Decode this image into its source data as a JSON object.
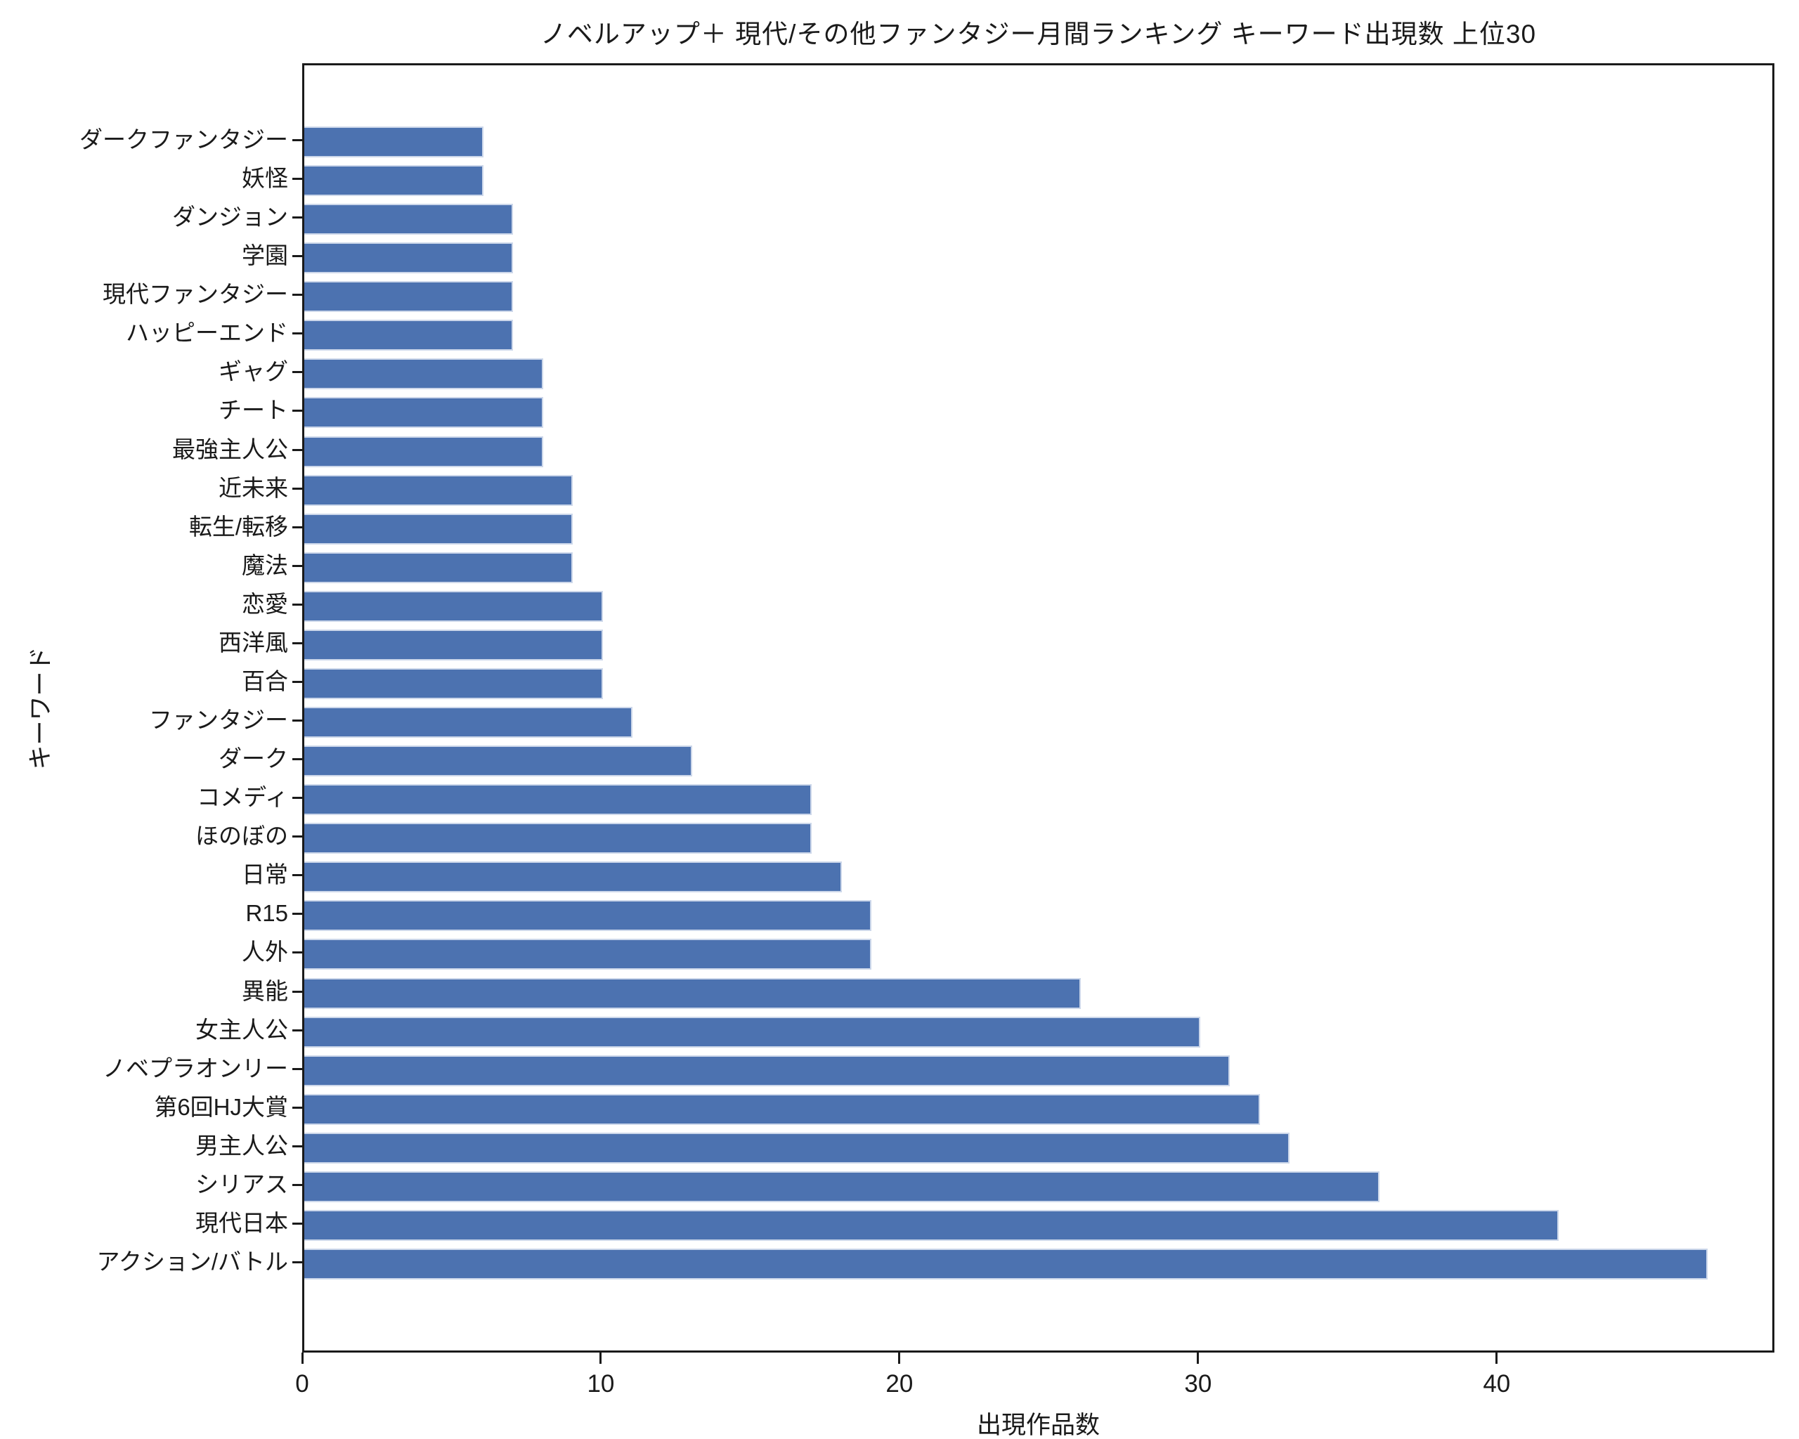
{
  "title": "ノベルアップ＋ 現代/その他ファンタジー月間ランキング キーワード出現数 上位30",
  "chart_data": {
    "type": "bar",
    "orientation": "horizontal",
    "title": "ノベルアップ＋ 現代/その他ファンタジー月間ランキング キーワード出現数 上位30",
    "xlabel": "出現作品数",
    "ylabel": "キーワード",
    "categories": [
      "ダークファンタジー",
      "妖怪",
      "ダンジョン",
      "学園",
      "現代ファンタジー",
      "ハッピーエンド",
      "ギャグ",
      "チート",
      "最強主人公",
      "近未来",
      "転生/転移",
      "魔法",
      "恋愛",
      "西洋風",
      "百合",
      "ファンタジー",
      "ダーク",
      "コメディ",
      "ほのぼの",
      "日常",
      "R15",
      "人外",
      "異能",
      "女主人公",
      "ノベプラオンリー",
      "第6回HJ大賞",
      "男主人公",
      "シリアス",
      "現代日本",
      "アクション/バトル"
    ],
    "values": [
      6,
      6,
      7,
      7,
      7,
      7,
      8,
      8,
      8,
      9,
      9,
      9,
      10,
      10,
      10,
      11,
      13,
      17,
      17,
      18,
      19,
      19,
      26,
      30,
      31,
      32,
      33,
      36,
      42,
      47
    ],
    "x_ticks": [
      0,
      10,
      20,
      30,
      40
    ],
    "xlim": [
      0,
      49.3
    ],
    "grid": false,
    "legend": false,
    "bar_color": "#4C72B0",
    "bar_edge_color": "#ccd7ea",
    "text_color": "#1a1a1a",
    "background_color": "#ffffff"
  }
}
